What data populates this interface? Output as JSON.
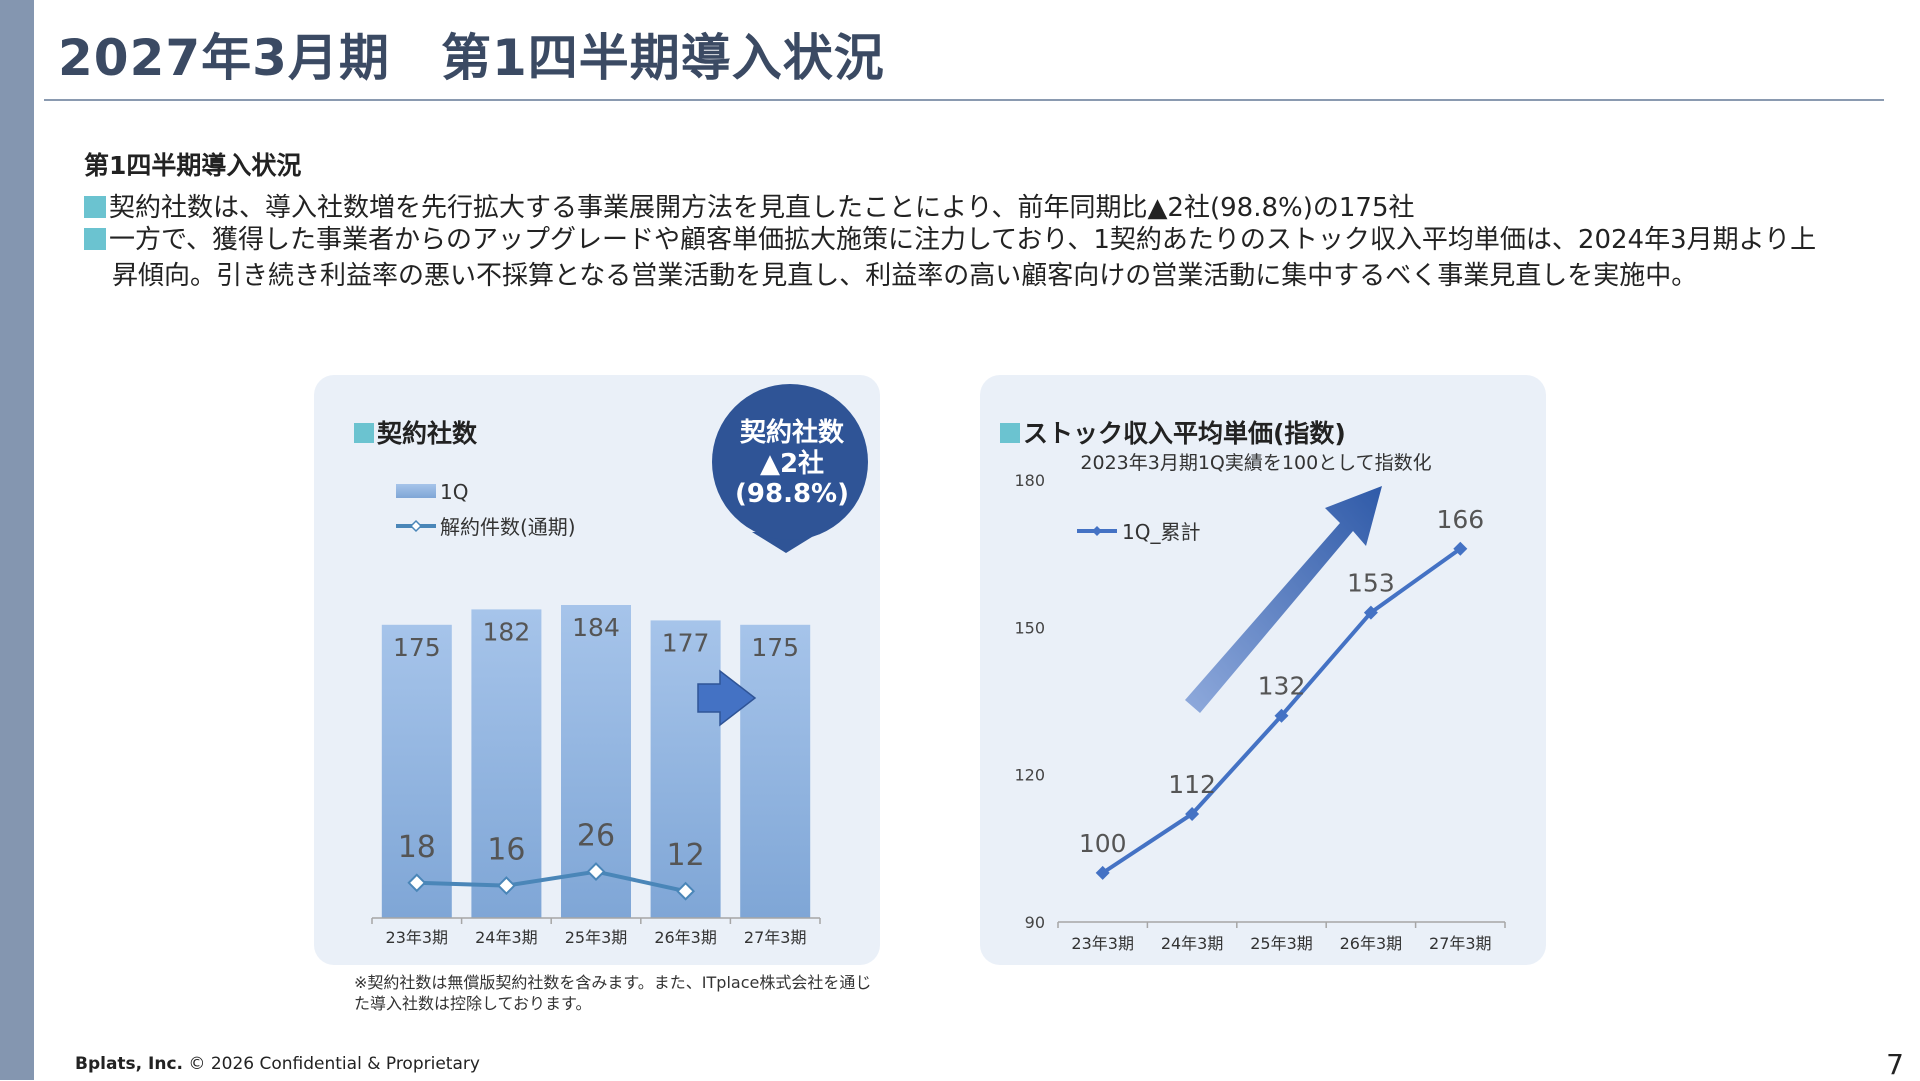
{
  "page": {
    "title": "2027年3月期　第1四半期導入状況",
    "section_heading": "第1四半期導入状況",
    "bullets": [
      "契約社数は、導入社数増を先行拡大する事業展開方法を見直したことにより、前年同期比▲2社(98.8%)の175社",
      "一方で、獲得した事業者からのアップグレードや顧客単価拡大施策に注力しており、1契約あたりのストック収入平均単価は、2024年3月期より上",
      "昇傾向。引き続き利益率の悪い不採算となる営業活動を見直し、利益率の高い顧客向けの営業活動に集中するべく事業見直しを実施中。"
    ],
    "note": "※契約社数は無償版契約社数を含みます。また、ITplace株式会社を通じた導入社数は控除しております。",
    "footer_company": "Bplats, Inc.",
    "footer_text": " © 2026 Confidential & Proprietary",
    "page_number": "7",
    "accent_color": "#6bc3d0",
    "title_color": "#3b4a63"
  },
  "callout": {
    "line1": "契約社数",
    "line2": "▲2社",
    "line3": "(98.8%)",
    "color": "#2f5496"
  },
  "chart_data": [
    {
      "type": "bar",
      "title": "契約社数",
      "categories": [
        "23年3期",
        "24年3期",
        "25年3期",
        "26年3期",
        "27年3期"
      ],
      "series": [
        {
          "name": "1Q",
          "kind": "bar",
          "values": [
            175,
            182,
            184,
            177,
            175
          ],
          "color": "#8eb4e3"
        },
        {
          "name": "解約件数(通期)",
          "kind": "line",
          "values": [
            18,
            16,
            26,
            12,
            null
          ],
          "color": "#4a86b8"
        }
      ],
      "grid": false,
      "legend": "top-left"
    },
    {
      "type": "line",
      "title": "ストック収入平均単価(指数)",
      "subtitle": "2023年3月期1Q実績を100として指数化",
      "categories": [
        "23年3期",
        "24年3期",
        "25年3期",
        "26年3期",
        "27年3期"
      ],
      "series": [
        {
          "name": "1Q_累計",
          "values": [
            100,
            112,
            132,
            153,
            166
          ],
          "color": "#4472c4"
        }
      ],
      "ylim": [
        90,
        180
      ],
      "yticks": [
        "90",
        "120",
        "150",
        "180"
      ],
      "grid": false,
      "legend": "top-left"
    }
  ]
}
